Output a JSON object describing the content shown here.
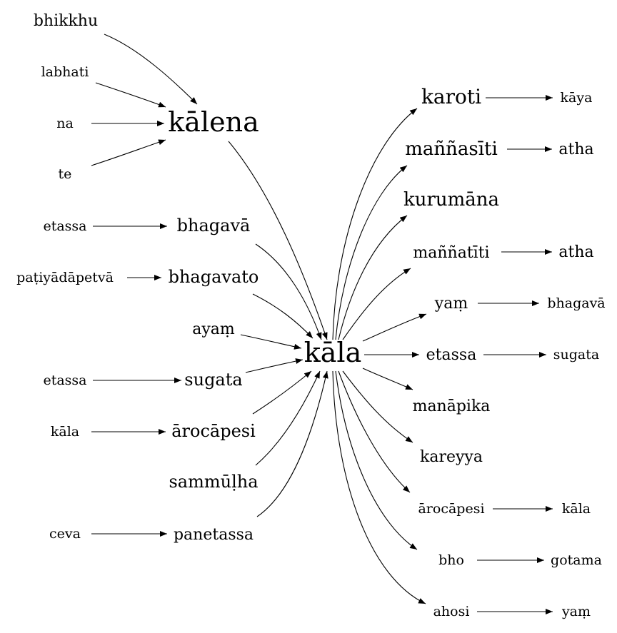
{
  "diagram": {
    "nodes": {
      "bhikkhu": "bhikkhu",
      "labhati": "labhati",
      "na": "na",
      "te": "te",
      "kalena": "kālena",
      "etassa_1": "etassa",
      "bhagava_l": "bhagavā",
      "patiyadapetva": "paṭiyādāpetvā",
      "bhagavato": "bhagavato",
      "ayam": "ayaṃ",
      "etassa_2": "etassa",
      "sugata_l": "sugata",
      "kala_l": "kāla",
      "arocapesi_l": "ārocāpesi",
      "sammulha": "sammūḷha",
      "ceva": "ceva",
      "panetassa": "panetassa",
      "kala_center": "kāla",
      "karoti": "karoti",
      "kaya": "kāya",
      "mannasiti": "maññasīti",
      "atha_1": "atha",
      "kurumana": "kurumāna",
      "mannatiti": "maññatīti",
      "atha_2": "atha",
      "yam_r": "yaṃ",
      "bhagava_r": "bhagavā",
      "etassa_r": "etassa",
      "sugata_r": "sugata",
      "manapika": "manāpika",
      "kareyya": "kareyya",
      "arocapesi_r": "ārocāpesi",
      "kala_r": "kāla",
      "bho": "bho",
      "gotama": "gotama",
      "ahosi": "ahosi",
      "yam_end": "yaṃ"
    },
    "edges": [
      [
        "bhikkhu",
        "kalena"
      ],
      [
        "labhati",
        "kalena"
      ],
      [
        "na",
        "kalena"
      ],
      [
        "te",
        "kalena"
      ],
      [
        "kalena",
        "kala_center"
      ],
      [
        "etassa_1",
        "bhagava_l"
      ],
      [
        "bhagava_l",
        "kala_center"
      ],
      [
        "patiyadapetva",
        "bhagavato"
      ],
      [
        "bhagavato",
        "kala_center"
      ],
      [
        "ayam",
        "kala_center"
      ],
      [
        "etassa_2",
        "sugata_l"
      ],
      [
        "sugata_l",
        "kala_center"
      ],
      [
        "kala_l",
        "arocapesi_l"
      ],
      [
        "arocapesi_l",
        "kala_center"
      ],
      [
        "sammulha",
        "kala_center"
      ],
      [
        "ceva",
        "panetassa"
      ],
      [
        "panetassa",
        "kala_center"
      ],
      [
        "kala_center",
        "karoti"
      ],
      [
        "karoti",
        "kaya"
      ],
      [
        "kala_center",
        "mannasiti"
      ],
      [
        "mannasiti",
        "atha_1"
      ],
      [
        "kala_center",
        "kurumana"
      ],
      [
        "kala_center",
        "mannatiti"
      ],
      [
        "mannatiti",
        "atha_2"
      ],
      [
        "kala_center",
        "yam_r"
      ],
      [
        "yam_r",
        "bhagava_r"
      ],
      [
        "kala_center",
        "etassa_r"
      ],
      [
        "etassa_r",
        "sugata_r"
      ],
      [
        "kala_center",
        "manapika"
      ],
      [
        "kala_center",
        "kareyya"
      ],
      [
        "kala_center",
        "arocapesi_r"
      ],
      [
        "arocapesi_r",
        "kala_r"
      ],
      [
        "kala_center",
        "bho"
      ],
      [
        "bho",
        "gotama"
      ],
      [
        "kala_center",
        "ahosi"
      ],
      [
        "ahosi",
        "yam_end"
      ]
    ]
  }
}
